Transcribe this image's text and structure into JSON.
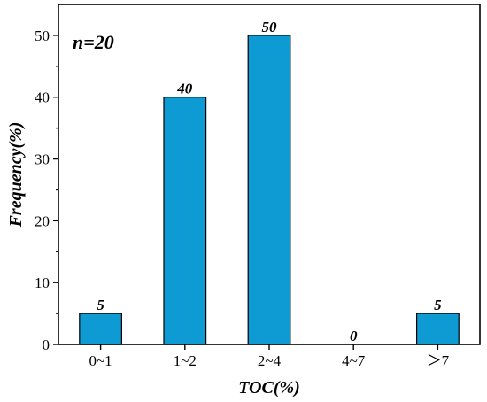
{
  "chart_data": {
    "type": "bar",
    "categories": [
      "0~1",
      "1~2",
      "2~4",
      "4~7",
      "＞7"
    ],
    "values": [
      5,
      40,
      50,
      0,
      5
    ],
    "data_labels": [
      "5",
      "40",
      "50",
      "0",
      "5"
    ],
    "xlabel": "TOC(%)",
    "ylabel": "Frequency(%)",
    "ylim": [
      0,
      55
    ],
    "yticks": [
      0,
      10,
      20,
      30,
      40,
      50
    ],
    "annotation": "n=20",
    "bar_color": "#0e9ad3",
    "grid": false
  }
}
